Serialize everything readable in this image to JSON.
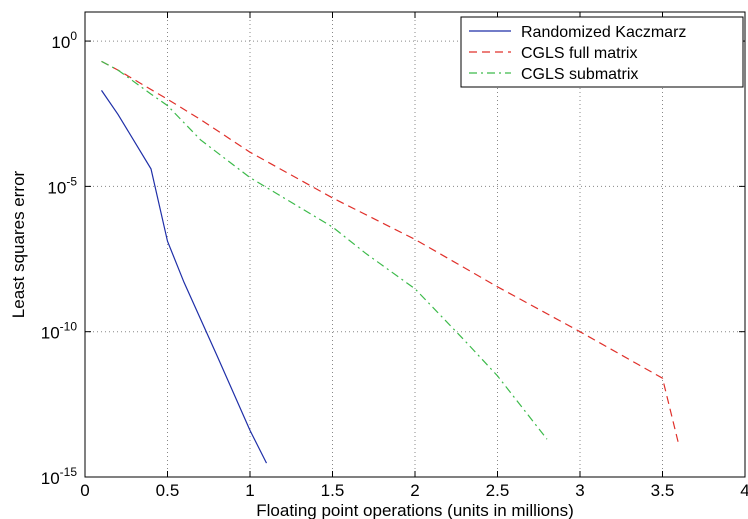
{
  "chart_data": {
    "type": "line",
    "title": "",
    "xlabel": "Floating point operations (units in millions)",
    "ylabel": "Least squares error",
    "xlim": [
      0,
      4
    ],
    "ylim_log10": [
      -15,
      1
    ],
    "yscale": "log",
    "grid": true,
    "legend_position": "top-right",
    "x_ticks": [
      {
        "value": 0,
        "label": "0"
      },
      {
        "value": 0.5,
        "label": "0.5"
      },
      {
        "value": 1,
        "label": "1"
      },
      {
        "value": 1.5,
        "label": "1.5"
      },
      {
        "value": 2,
        "label": "2"
      },
      {
        "value": 2.5,
        "label": "2.5"
      },
      {
        "value": 3,
        "label": "3"
      },
      {
        "value": 3.5,
        "label": "3.5"
      },
      {
        "value": 4,
        "label": "4"
      }
    ],
    "y_ticks": [
      {
        "value": 1,
        "base": "10",
        "exp": "0"
      },
      {
        "value": 1e-05,
        "base": "10",
        "exp": "-5"
      },
      {
        "value": 1e-10,
        "base": "10",
        "exp": "-10"
      },
      {
        "value": 1e-15,
        "base": "10",
        "exp": "-15"
      }
    ],
    "series": [
      {
        "name": "Randomized Kaczmarz",
        "color": "#1f2fa8",
        "dash": "solid",
        "points": [
          [
            0.1,
            0.02
          ],
          [
            0.2,
            0.003
          ],
          [
            0.4,
            4e-05
          ],
          [
            0.5,
            1.3e-07
          ],
          [
            0.6,
            5e-09
          ],
          [
            0.8,
            1.5e-11
          ],
          [
            1.0,
            4e-14
          ],
          [
            1.1,
            3e-15
          ]
        ]
      },
      {
        "name": "CGLS full matrix",
        "color": "#e0302a",
        "dash": "dashed",
        "points": [
          [
            0.1,
            0.2
          ],
          [
            0.2,
            0.1
          ],
          [
            0.5,
            0.01
          ],
          [
            0.7,
            0.002
          ],
          [
            1.0,
            0.00015
          ],
          [
            1.5,
            4e-06
          ],
          [
            2.0,
            1.5e-07
          ],
          [
            2.5,
            3.5e-09
          ],
          [
            3.0,
            1e-10
          ],
          [
            3.5,
            2.5e-12
          ],
          [
            3.6,
            1.2e-14
          ]
        ]
      },
      {
        "name": "CGLS submatrix",
        "color": "#3cba4a",
        "dash": "dashdot",
        "points": [
          [
            0.1,
            0.2
          ],
          [
            0.2,
            0.1
          ],
          [
            0.4,
            0.015
          ],
          [
            0.5,
            0.006
          ],
          [
            0.7,
            0.0004
          ],
          [
            1.0,
            2e-05
          ],
          [
            1.5,
            4e-07
          ],
          [
            1.7,
            5e-08
          ],
          [
            2.0,
            3e-09
          ],
          [
            2.3,
            5e-11
          ],
          [
            2.5,
            3e-12
          ],
          [
            2.8,
            2e-14
          ]
        ]
      }
    ]
  }
}
